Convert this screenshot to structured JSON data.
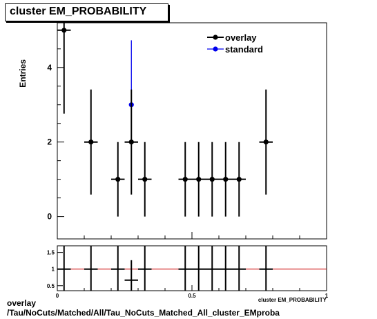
{
  "title": "cluster EM_PROBABILITY",
  "footer": {
    "line1": "overlay",
    "line2": "/Tau/NoCuts/Matched/All/Tau_NoCuts_Matched_All_cluster_EMproba"
  },
  "colors": {
    "overlay": "#000000",
    "standard": "#0000ee",
    "ratio_line": "#cc0000"
  },
  "chart_data": [
    {
      "type": "scatter",
      "title": "cluster EM_PROBABILITY",
      "ylabel": "Entries",
      "xlabel": "",
      "xlim": [
        0,
        1
      ],
      "ylim": [
        -0.6,
        5.2
      ],
      "y_ticks": [
        0,
        2,
        4
      ],
      "y_tick_labels": [
        "0",
        "2",
        "4"
      ],
      "legend": {
        "placement": "top-right",
        "entries": [
          "overlay",
          "standard"
        ]
      },
      "series": [
        {
          "name": "overlay",
          "points": [
            {
              "x": 0.025,
              "y": 5,
              "xerr": 0.025,
              "yerr": 2.24
            },
            {
              "x": 0.125,
              "y": 2,
              "xerr": 0.025,
              "yerr": 1.41
            },
            {
              "x": 0.225,
              "y": 1,
              "xerr": 0.025,
              "yerr": 1.0
            },
            {
              "x": 0.275,
              "y": 2,
              "xerr": 0.025,
              "yerr": 1.41
            },
            {
              "x": 0.325,
              "y": 1,
              "xerr": 0.025,
              "yerr": 1.0
            },
            {
              "x": 0.475,
              "y": 1,
              "xerr": 0.025,
              "yerr": 1.0
            },
            {
              "x": 0.525,
              "y": 1,
              "xerr": 0.025,
              "yerr": 1.0
            },
            {
              "x": 0.575,
              "y": 1,
              "xerr": 0.025,
              "yerr": 1.0
            },
            {
              "x": 0.625,
              "y": 1,
              "xerr": 0.025,
              "yerr": 1.0
            },
            {
              "x": 0.675,
              "y": 1,
              "xerr": 0.025,
              "yerr": 1.0
            },
            {
              "x": 0.775,
              "y": 2,
              "xerr": 0.025,
              "yerr": 1.41
            }
          ]
        },
        {
          "name": "standard",
          "points": [
            {
              "x": 0.275,
              "y": 3,
              "xerr": 0.0,
              "yerr": 1.73
            }
          ]
        }
      ]
    },
    {
      "type": "scatter",
      "xlabel": "cluster EM_PROBABILITY",
      "xlim": [
        0,
        1
      ],
      "ylim": [
        0.35,
        1.7
      ],
      "x_ticks": [
        0,
        0.5,
        1
      ],
      "x_tick_labels": [
        "0",
        "0.5",
        "1"
      ],
      "y_ticks": [
        0.5,
        1,
        1.5
      ],
      "y_tick_labels": [
        "0.5",
        "1",
        "1.5"
      ],
      "reference_line": 1,
      "series": [
        {
          "name": "ratio",
          "points": [
            {
              "x": 0.025,
              "y": 1,
              "xerr": 0.025,
              "yerr": 1.0
            },
            {
              "x": 0.125,
              "y": 1,
              "xerr": 0.025,
              "yerr": 1.0
            },
            {
              "x": 0.225,
              "y": 1,
              "xerr": 0.025,
              "yerr": 1.0
            },
            {
              "x": 0.275,
              "y": 0.667,
              "xerr": 0.025,
              "yerr": 0.6
            },
            {
              "x": 0.325,
              "y": 1,
              "xerr": 0.025,
              "yerr": 1.0
            },
            {
              "x": 0.475,
              "y": 1,
              "xerr": 0.025,
              "yerr": 1.0
            },
            {
              "x": 0.525,
              "y": 1,
              "xerr": 0.025,
              "yerr": 1.0
            },
            {
              "x": 0.575,
              "y": 1,
              "xerr": 0.025,
              "yerr": 1.0
            },
            {
              "x": 0.625,
              "y": 1,
              "xerr": 0.025,
              "yerr": 1.0
            },
            {
              "x": 0.675,
              "y": 1,
              "xerr": 0.025,
              "yerr": 1.0
            },
            {
              "x": 0.775,
              "y": 1,
              "xerr": 0.025,
              "yerr": 1.0
            }
          ]
        }
      ]
    }
  ]
}
